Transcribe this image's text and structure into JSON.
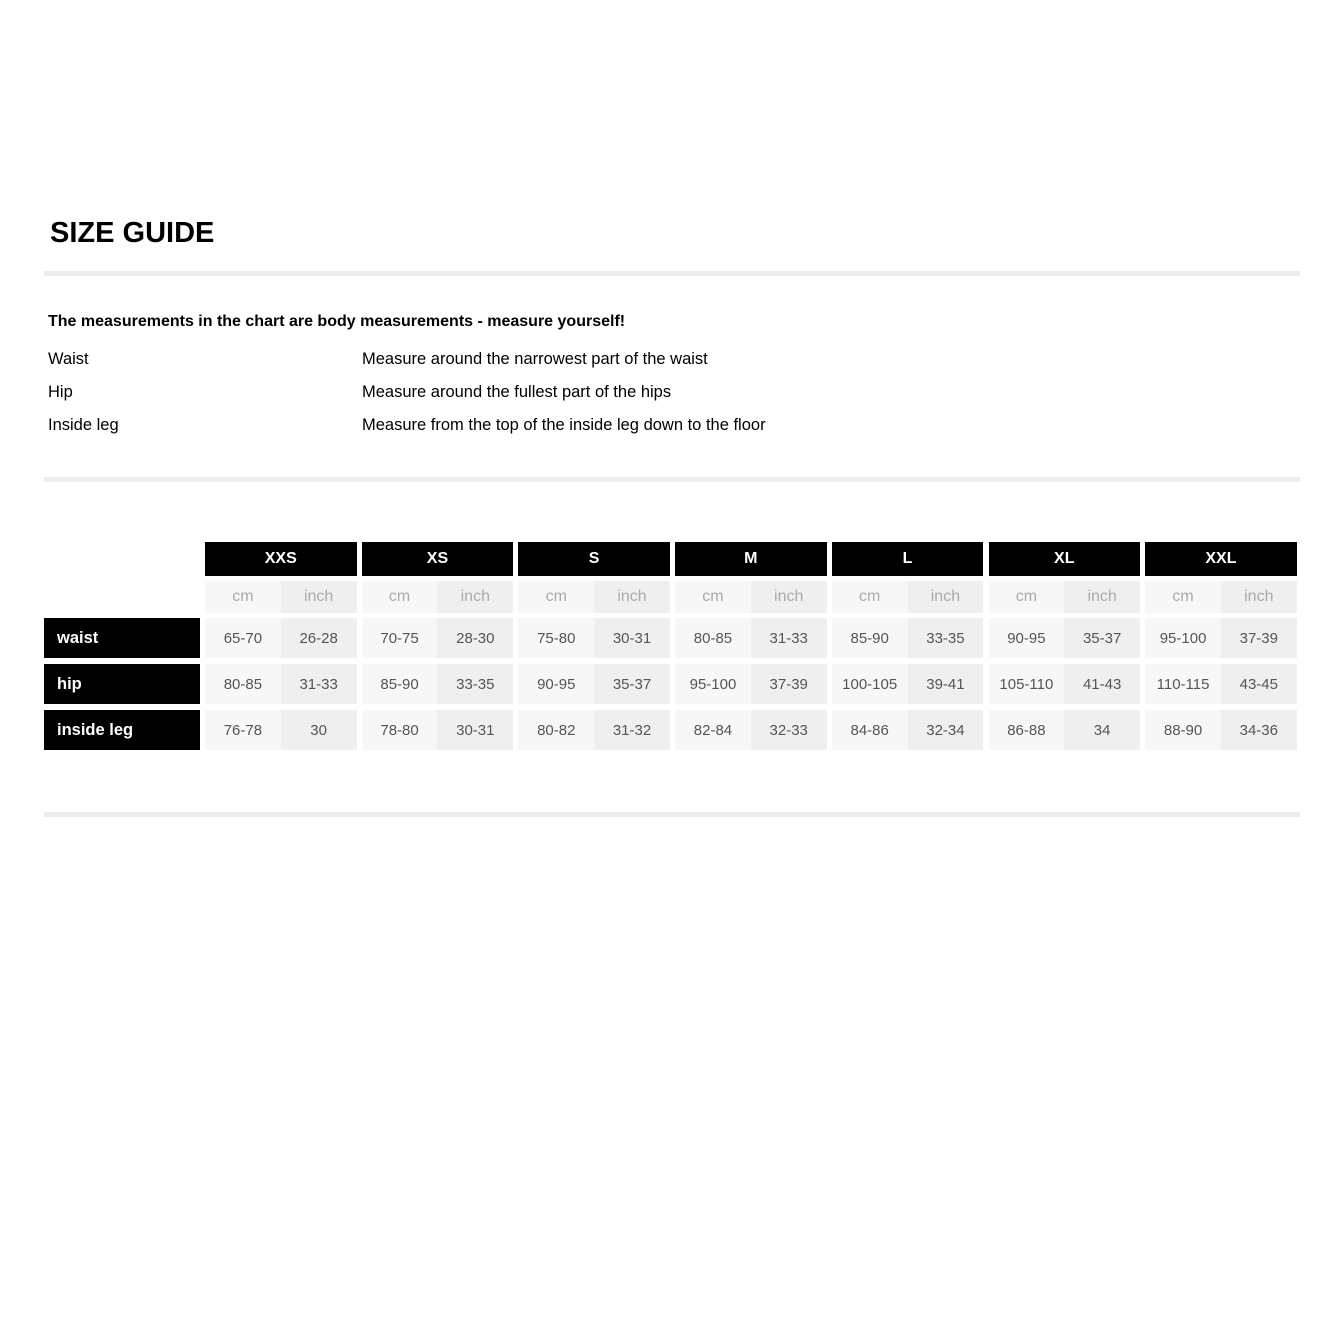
{
  "title": "SIZE GUIDE",
  "intro": "The measurements in the chart are body measurements - measure yourself!",
  "measurements": [
    {
      "name": "Waist",
      "desc": "Measure around the narrowest part of the waist"
    },
    {
      "name": "Hip",
      "desc": "Measure around the fullest part of the hips"
    },
    {
      "name": "Inside leg",
      "desc": "Measure from the top of the inside leg down to the floor"
    }
  ],
  "table": {
    "sizes": [
      "XXS",
      "XS",
      "S",
      "M",
      "L",
      "XL",
      "XXL"
    ],
    "units": {
      "cm": "cm",
      "inch": "inch"
    },
    "rows": [
      {
        "label": "waist",
        "values": [
          [
            "65-70",
            "26-28"
          ],
          [
            "70-75",
            "28-30"
          ],
          [
            "75-80",
            "30-31"
          ],
          [
            "80-85",
            "31-33"
          ],
          [
            "85-90",
            "33-35"
          ],
          [
            "90-95",
            "35-37"
          ],
          [
            "95-100",
            "37-39"
          ]
        ]
      },
      {
        "label": "hip",
        "values": [
          [
            "80-85",
            "31-33"
          ],
          [
            "85-90",
            "33-35"
          ],
          [
            "90-95",
            "35-37"
          ],
          [
            "95-100",
            "37-39"
          ],
          [
            "100-105",
            "39-41"
          ],
          [
            "105-110",
            "41-43"
          ],
          [
            "110-115",
            "43-45"
          ]
        ]
      },
      {
        "label": "inside leg",
        "values": [
          [
            "76-78",
            "30"
          ],
          [
            "78-80",
            "30-31"
          ],
          [
            "80-82",
            "31-32"
          ],
          [
            "82-84",
            "32-33"
          ],
          [
            "84-86",
            "32-34"
          ],
          [
            "86-88",
            "34"
          ],
          [
            "88-90",
            "34-36"
          ]
        ]
      }
    ]
  }
}
